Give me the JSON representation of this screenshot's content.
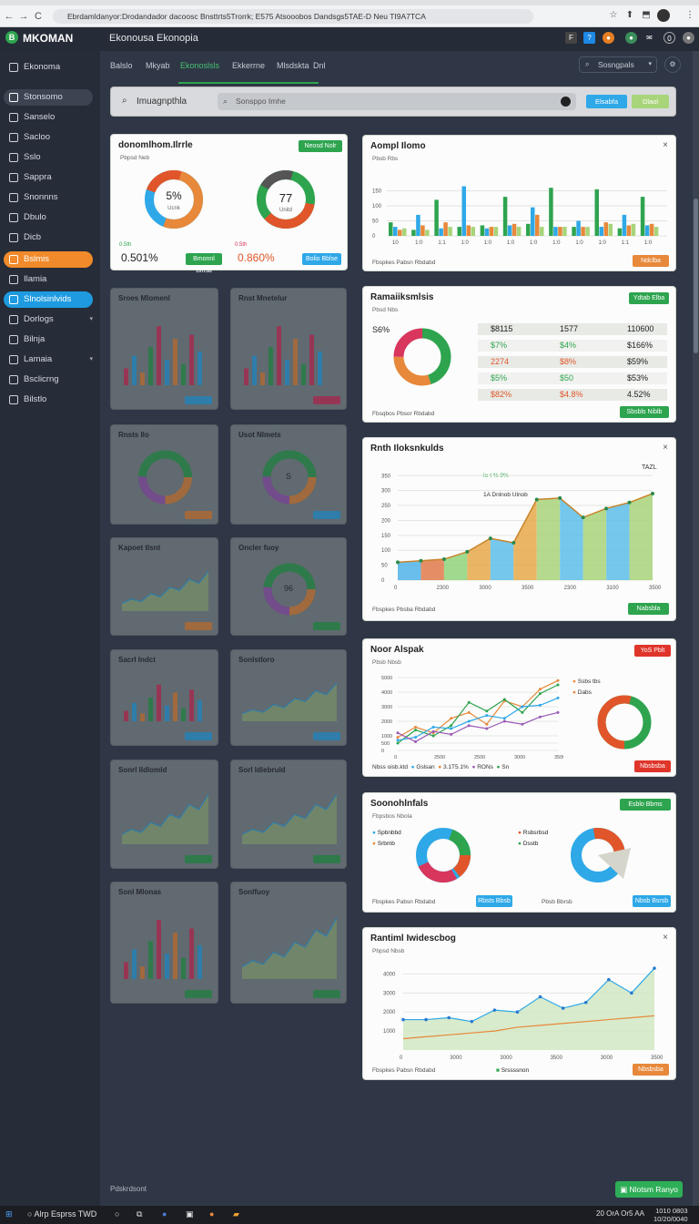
{
  "browser": {
    "url": "Ebrdamldanyor:Drodandador dacoosc Bnsttrts5Trorrk; E575 Atsooobos Dandsgs5TAE-D Neu TI9A7TCA",
    "nav": [
      "←",
      "→",
      "C"
    ],
    "toolbar_icons": [
      "☆",
      "⬆",
      "⬒",
      "⋮"
    ]
  },
  "app": {
    "logo_letter": "B",
    "brand": "MKOMAN",
    "title": "Ekonousa Ekonopia",
    "top_icons": [
      "F",
      "?",
      "●",
      "●",
      "✉",
      "0",
      "●"
    ]
  },
  "sidebar": {
    "items": [
      {
        "label": "Ekonoma",
        "active": false,
        "chev": false
      },
      {
        "label": "Stonsomo",
        "active": false,
        "highlight": "grey",
        "chev": false
      },
      {
        "label": "Sanselo",
        "active": false,
        "chev": false
      },
      {
        "label": "Sacloo",
        "active": false,
        "chev": false
      },
      {
        "label": "Sslo",
        "active": false,
        "chev": false
      },
      {
        "label": "Sappra",
        "active": false,
        "chev": false
      },
      {
        "label": "Snonnns",
        "active": false,
        "chev": false
      },
      {
        "label": "Dbulo",
        "active": false,
        "chev": false
      },
      {
        "label": "Dicb",
        "active": false,
        "chev": false
      },
      {
        "label": "Bslmis",
        "active": true,
        "highlight": "orange",
        "chev": false
      },
      {
        "label": "Ilamia",
        "active": false,
        "chev": false
      },
      {
        "label": "Slnolsinlvids",
        "active": true,
        "highlight": "blue",
        "chev": false
      },
      {
        "label": "Dorlogs",
        "active": false,
        "chev": true
      },
      {
        "label": "Bilnja",
        "active": false,
        "chev": false
      },
      {
        "label": "Lamaia",
        "active": false,
        "chev": true
      },
      {
        "label": "Bsclicrng",
        "active": false,
        "chev": false
      },
      {
        "label": "Bilstlo",
        "active": false,
        "chev": false
      }
    ]
  },
  "subnav": {
    "tabs": [
      "Balslo",
      "Mkyab",
      "Ekonoslsls",
      "Ekkerrne",
      "Mlsdskta",
      "Dnl"
    ],
    "active_index": 2,
    "search_placeholder": "Sosngpals"
  },
  "filter": {
    "label": "Imuagnpthla",
    "search_placeholder": "Sonsppo Imhe",
    "btn1": "Elsabfa",
    "btn2": "Dlaol"
  },
  "cards": {
    "donut_pair": {
      "title": "donomlhom.Ilrrle",
      "sub": "Pbpsd Neb",
      "badge": "Neosd Nolr",
      "d1_center": "5%",
      "d1_sub": "Ucnk",
      "d2_center": "77",
      "d2_sub": "Unitd",
      "v1_caption": "0.5th",
      "v1": "0.501%",
      "v2_caption": "0.5th",
      "v2": "0.860%",
      "btn1": "Bmonnl Blnsa",
      "btn2": "Bolio Bblse"
    },
    "bar1": {
      "title": "Aompl Ilomo",
      "sub": "Pbsb Rbs",
      "foot": "Fbspkes Pabsn Rbdabd",
      "btn": "Ndclba"
    },
    "table_card": {
      "title": "Ramaiiksmlsis",
      "sub": "Pbsd Nbs",
      "pct": "S6%",
      "badge": "Ydtab Elba",
      "foot": "Fbsqbos Pbsor Rbdabd",
      "btn": "Sbsbls Niblb",
      "rows": [
        [
          "$8115",
          "1577",
          "110600"
        ],
        [
          "$7%",
          "$4%",
          "$166%"
        ],
        [
          "2274",
          "$8%",
          "$59%"
        ],
        [
          "$5%",
          "$50",
          "$53%"
        ],
        [
          "$82%",
          "$4.8%",
          "4.52%"
        ]
      ]
    },
    "area_card": {
      "title": "Rnth Iloksnkulds",
      "legend1": "lo-t % 9%",
      "legend2": "1A Dnlnob Ulnob",
      "corner": "TAZL",
      "foot": "Fbspkes Pbsba Rbdabd",
      "btn": "Nabsbla"
    },
    "line_card": {
      "title": "Noor Alspak",
      "sub": "Pbsb Nbsb",
      "badge": "YoS Pblt",
      "legend_top": [
        "Ssbs tbs",
        "Dabs"
      ],
      "foot_items": [
        "Nbss oisb.ktd",
        "Gslsan",
        "3.1T5.1%",
        "RONs",
        "Sn"
      ],
      "btn": "Nbsbsba"
    },
    "pie_card": {
      "title": "Soonohlnfals",
      "sub": "Fbpsbos Nbola",
      "badge": "Esblo Bbms",
      "legend_left": [
        "Spbnbbd",
        "Srbmb"
      ],
      "legend_right": [
        "Rsbsrbsd",
        "Dsstb"
      ],
      "foot": "Fbspkes Pabsn Rbdabd",
      "btn1": "Rbsts Bbsb",
      "btn2": "Pbsb Bbrsb",
      "btn3": "Nbsb Bsrsb"
    },
    "area2_card": {
      "title": "Rantiml Iwidescbog",
      "sub": "Pbpsd Nbsb",
      "legend": "Srssssnon",
      "foot": "Fbspkes Pabsn Rbdabd",
      "btn": "Nbsbsba"
    },
    "dim_titles": [
      "Sroes Mlomenl",
      "Rnst Mnetelur",
      "Rnsts Ilo",
      "Usot Nlmets",
      "Kapoet tlsnt",
      "Oncler fuoy",
      "Sacrl Indct",
      "Sonlstloro",
      "Sonrl Ildlomld",
      "Sorl Idlebruld",
      "Sonl Mlonas",
      "Sonlfuoy"
    ],
    "dim_donut_center": "S",
    "dim_donut2_center": "96"
  },
  "footer": {
    "note": "Pdskrdsont",
    "help": "Nlotsm Ranyo"
  },
  "taskbar": {
    "start_text": "Alrp Esprss TWD",
    "time": "1010 0803",
    "date": "10/20/0040",
    "tray": "20 OrA Or5 AA"
  },
  "chart_data": [
    {
      "type": "bar",
      "title": "Aompl Ilomo",
      "ylim": [
        0,
        200
      ],
      "y_ticks": [
        "0",
        "50",
        "100",
        "150"
      ],
      "categories": [
        "10",
        "1:0",
        "1:1",
        "1:0",
        "1:0",
        "1:0",
        "1:0",
        "1:0",
        "1:0",
        "1:0",
        "1:1",
        "1:0"
      ],
      "series": [
        {
          "color": "#2ea44f",
          "values": [
            45,
            20,
            120,
            30,
            35,
            130,
            40,
            160,
            30,
            155,
            25,
            130
          ]
        },
        {
          "color": "#2fa8e8",
          "values": [
            30,
            70,
            25,
            165,
            25,
            35,
            95,
            30,
            50,
            30,
            70,
            35
          ]
        },
        {
          "color": "#e7883a",
          "values": [
            20,
            35,
            45,
            35,
            30,
            40,
            70,
            30,
            30,
            45,
            35,
            40
          ]
        },
        {
          "color": "#a8d47a",
          "values": [
            25,
            20,
            30,
            30,
            30,
            30,
            30,
            30,
            30,
            40,
            40,
            30
          ]
        }
      ]
    },
    {
      "type": "area",
      "title": "Rnth Iloksnkulds",
      "ylim": [
        0,
        360
      ],
      "y_ticks": [
        "0",
        "50",
        "100",
        "150",
        "200",
        "250",
        "300",
        "350"
      ],
      "x_ticks": [
        "0",
        "2300",
        "3000",
        "3500",
        "2300",
        "3100",
        "3500"
      ],
      "x": [
        0,
        1,
        2,
        3,
        4,
        5,
        6,
        7,
        8,
        9,
        10,
        11
      ],
      "series": [
        {
          "name": "series-a",
          "values": [
            60,
            65,
            70,
            95,
            140,
            125,
            270,
            275,
            210,
            240,
            260,
            290
          ]
        }
      ]
    },
    {
      "type": "line",
      "title": "Noor Alspak",
      "ylim": [
        0,
        5000
      ],
      "y_ticks": [
        "0",
        "500",
        "1000",
        "2000",
        "3000",
        "4000",
        "5000"
      ],
      "x_ticks": [
        "0",
        "2500",
        "2500",
        "3000",
        "3500"
      ],
      "series": [
        {
          "name": "Ssbs tbs",
          "color": "#e7883a",
          "values": [
            900,
            1600,
            1200,
            2200,
            2600,
            1800,
            3400,
            3000,
            4200,
            4800
          ]
        },
        {
          "name": "Dabs",
          "color": "#2ea44f",
          "values": [
            500,
            1400,
            1000,
            1700,
            3300,
            2700,
            3500,
            2600,
            3900,
            4500
          ]
        },
        {
          "name": "series-3",
          "color": "#2fa8e8",
          "values": [
            700,
            900,
            1600,
            1500,
            2000,
            2400,
            2200,
            3000,
            3100,
            3600
          ]
        },
        {
          "name": "series-4",
          "color": "#9b59b6",
          "values": [
            1200,
            600,
            1300,
            1100,
            1700,
            1500,
            2000,
            1800,
            2300,
            2600
          ]
        }
      ]
    },
    {
      "type": "line",
      "title": "Rantiml Iwidescbog",
      "ylim": [
        0,
        4500
      ],
      "y_ticks": [
        "1000",
        "2000",
        "3000",
        "4000"
      ],
      "x_ticks": [
        "0",
        "3000",
        "3000",
        "3500",
        "3000",
        "3500"
      ],
      "series": [
        {
          "name": "Srssssnon",
          "color": "#2fa8e8",
          "values": [
            1600,
            1600,
            1700,
            1500,
            2100,
            2000,
            2800,
            2200,
            2500,
            3700,
            3000,
            4300
          ]
        },
        {
          "name": "baseline",
          "color": "#e7883a",
          "values": [
            600,
            700,
            800,
            900,
            1000,
            1200,
            1300,
            1400,
            1500,
            1600,
            1700,
            1800
          ]
        }
      ]
    },
    {
      "type": "pie",
      "title": "Ramaiiksmlsis",
      "slices": [
        {
          "value": 45,
          "color": "#2ea44f"
        },
        {
          "value": 30,
          "color": "#e7883a"
        },
        {
          "value": 25,
          "color": "#d8365d"
        }
      ]
    }
  ]
}
